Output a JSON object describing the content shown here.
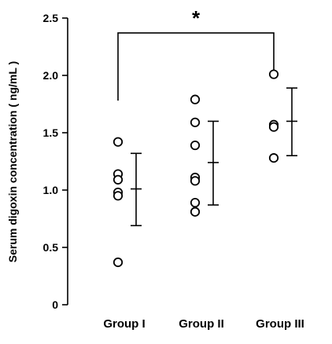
{
  "chart_data": {
    "type": "scatter",
    "ylabel": "Serum digoxin concentration ( ng/mL )",
    "xlabel": "",
    "ylim": [
      0,
      2.5
    ],
    "yticks": [
      {
        "value": 0,
        "label": "0"
      },
      {
        "value": 0.5,
        "label": "0.5"
      },
      {
        "value": 1.0,
        "label": "1.0"
      },
      {
        "value": 1.5,
        "label": "1.5"
      },
      {
        "value": 2.0,
        "label": "2.0"
      },
      {
        "value": 2.5,
        "label": "2.5"
      }
    ],
    "categories": [
      "Group I",
      "Group II",
      "Group III"
    ],
    "groups": [
      {
        "name": "Group I",
        "points": [
          1.42,
          1.14,
          1.09,
          0.98,
          0.95,
          0.37
        ],
        "mean": 1.01,
        "upper": 1.32,
        "lower": 0.69
      },
      {
        "name": "Group II",
        "points": [
          1.79,
          1.59,
          1.39,
          1.11,
          1.08,
          0.89,
          0.81
        ],
        "mean": 1.24,
        "upper": 1.6,
        "lower": 0.87
      },
      {
        "name": "Group III",
        "points": [
          2.01,
          1.57,
          1.55,
          1.28
        ],
        "mean": 1.6,
        "upper": 1.89,
        "lower": 1.3
      }
    ],
    "significance": {
      "from": "Group I",
      "to": "Group III",
      "label": "*",
      "y": 2.37,
      "drop_left": 1.78,
      "drop_right": 2.03
    },
    "grid": false,
    "marker": "open-circle",
    "color": "#000000"
  }
}
